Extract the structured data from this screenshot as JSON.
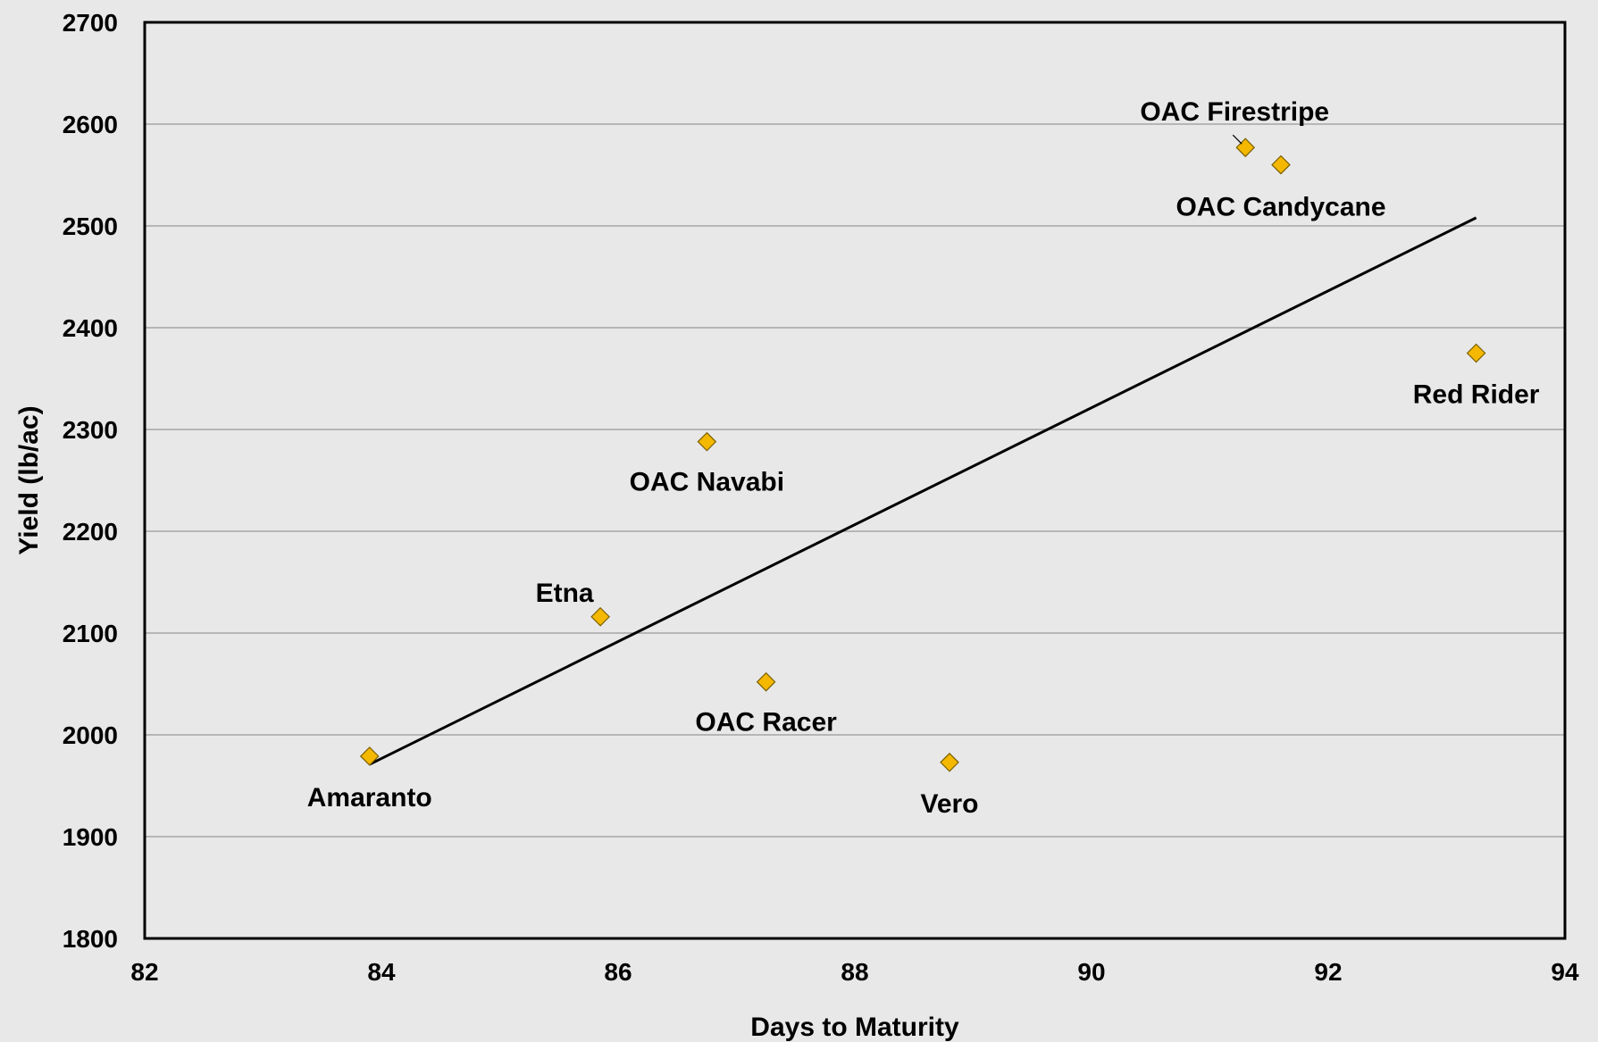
{
  "chart_data": {
    "type": "scatter",
    "xlabel": "Days to Maturity",
    "ylabel": "Yield (lb/ac)",
    "xlim": [
      82,
      94
    ],
    "ylim": [
      1800,
      2700
    ],
    "x_ticks": [
      "82",
      "84",
      "86",
      "88",
      "90",
      "92",
      "94"
    ],
    "y_ticks": [
      "1800",
      "1900",
      "2000",
      "2100",
      "2200",
      "2300",
      "2400",
      "2500",
      "2600",
      "2700"
    ],
    "grid": "horizontal",
    "legend": "none",
    "marker": "diamond",
    "marker_color": "#f5b800",
    "points": [
      {
        "label": "Amaranto",
        "x": 83.9,
        "y": 1979
      },
      {
        "label": "Etna",
        "x": 85.85,
        "y": 2116
      },
      {
        "label": "OAC Navabi",
        "x": 86.75,
        "y": 2288
      },
      {
        "label": "OAC Racer",
        "x": 87.25,
        "y": 2052
      },
      {
        "label": "Vero",
        "x": 88.8,
        "y": 1973
      },
      {
        "label": "OAC Firestripe",
        "x": 91.3,
        "y": 2577
      },
      {
        "label": "OAC Candycane",
        "x": 91.6,
        "y": 2560
      },
      {
        "label": "Red Rider",
        "x": 93.25,
        "y": 2375
      }
    ],
    "trendline": {
      "x": [
        83.9,
        93.25
      ],
      "y": [
        1971,
        2508
      ]
    }
  }
}
